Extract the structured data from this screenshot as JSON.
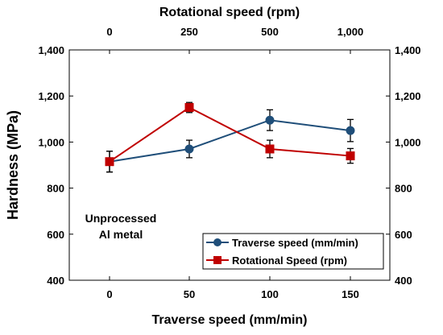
{
  "chart_data": {
    "type": "line",
    "ylabel": "Hardness (MPa)",
    "xlabel": "Traverse speed (mm/min)",
    "x2label": "Rotational  speed (rpm)",
    "ylim": [
      400,
      1400
    ],
    "yticks": [
      400,
      600,
      800,
      1000,
      1200,
      1400
    ],
    "ytick_labels": [
      "400",
      "600",
      "800",
      "1,000",
      "1,200",
      "1,400"
    ],
    "x_positions": [
      0,
      50,
      100,
      150
    ],
    "x_tick_labels": [
      "0",
      "50",
      "100",
      "150"
    ],
    "x2_tick_labels": [
      "0",
      "250",
      "500",
      "1,000"
    ],
    "annotation": [
      "Unprocessed",
      "Al metal"
    ],
    "legend_position": "bottom-right",
    "series": [
      {
        "name": "Traverse speed (mm/min)",
        "color": "#1f4e79",
        "marker": "circle",
        "x": [
          0,
          50,
          100,
          150
        ],
        "values": [
          915,
          970,
          1095,
          1050
        ],
        "error": [
          45,
          38,
          45,
          48
        ]
      },
      {
        "name": "Rotational Speed (rpm)",
        "color": "#c00000",
        "marker": "square",
        "x": [
          0,
          50,
          100,
          150
        ],
        "values": [
          915,
          1150,
          970,
          940
        ],
        "error": [
          45,
          22,
          38,
          32
        ]
      }
    ]
  }
}
